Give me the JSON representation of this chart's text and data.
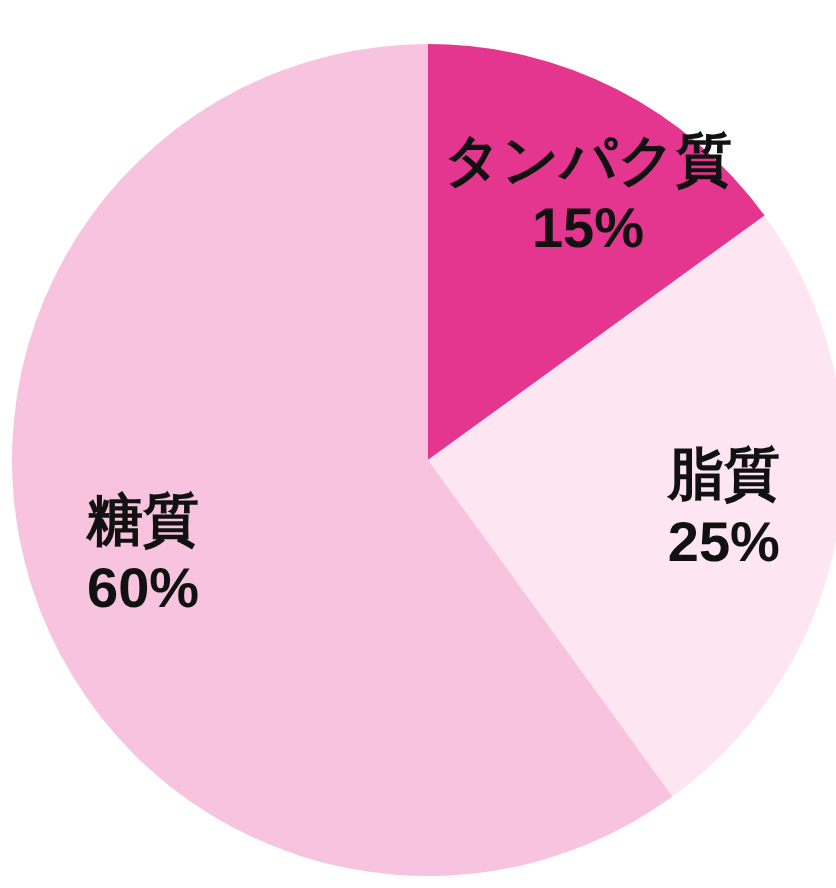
{
  "chart_data": {
    "type": "pie",
    "categories": [
      "タンパク質",
      "脂質",
      "糖質"
    ],
    "values": [
      15,
      25,
      60
    ],
    "value_labels": [
      "15%",
      "25%",
      "60%"
    ],
    "colors": [
      "#e4368f",
      "#fde6f1",
      "#f7c3de"
    ]
  }
}
